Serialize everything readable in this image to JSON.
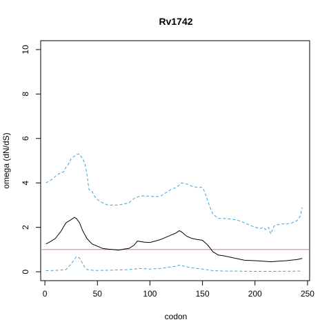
{
  "chart_data": {
    "type": "line",
    "title": "Rv1742",
    "xlabel": "codon",
    "ylabel": "omega (dN/dS)",
    "xlim": [
      -4,
      252
    ],
    "ylim": [
      -0.4,
      10.4
    ],
    "x_ticks": [
      0,
      50,
      100,
      150,
      200,
      250
    ],
    "y_ticks": [
      0,
      2,
      4,
      6,
      8,
      10
    ],
    "grid": false,
    "legend": "none",
    "reference_line": {
      "y": 1,
      "color": "#cc79a7"
    },
    "series": [
      {
        "style": "solid",
        "color": "#000000",
        "x": [
          1,
          5,
          10,
          15,
          20,
          25,
          28,
          30,
          33,
          36,
          40,
          45,
          50,
          55,
          60,
          65,
          70,
          75,
          80,
          85,
          88,
          95,
          100,
          105,
          110,
          115,
          120,
          125,
          128,
          130,
          135,
          140,
          145,
          150,
          155,
          160,
          165,
          170,
          180,
          190,
          200,
          210,
          215,
          220,
          230,
          240,
          245
        ],
        "y": [
          1.25,
          1.35,
          1.5,
          1.8,
          2.2,
          2.35,
          2.45,
          2.4,
          2.2,
          1.85,
          1.5,
          1.25,
          1.15,
          1.05,
          1.02,
          1.0,
          0.97,
          1.02,
          1.05,
          1.2,
          1.38,
          1.33,
          1.32,
          1.38,
          1.45,
          1.55,
          1.65,
          1.75,
          1.85,
          1.8,
          1.6,
          1.5,
          1.45,
          1.42,
          1.2,
          0.9,
          0.75,
          0.72,
          0.62,
          0.52,
          0.5,
          0.47,
          0.45,
          0.47,
          0.5,
          0.55,
          0.6
        ]
      },
      {
        "style": "dashed",
        "color": "#3aa0d9",
        "x": [
          1,
          5,
          8,
          10,
          13,
          15,
          18,
          20,
          22,
          25,
          28,
          30,
          33,
          35,
          38,
          40,
          42,
          45,
          48,
          50,
          55,
          60,
          65,
          70,
          75,
          80,
          85,
          90,
          95,
          100,
          105,
          110,
          115,
          120,
          125,
          128,
          130,
          135,
          140,
          145,
          150,
          152,
          155,
          158,
          160,
          165,
          170,
          175,
          180,
          185,
          190,
          195,
          200,
          205,
          208,
          210,
          213,
          215,
          218,
          220,
          225,
          230,
          235,
          240,
          243,
          245
        ],
        "y": [
          4.0,
          4.1,
          4.2,
          4.3,
          4.4,
          4.45,
          4.5,
          4.7,
          4.8,
          5.1,
          5.2,
          5.28,
          5.3,
          5.15,
          4.9,
          4.4,
          3.7,
          3.6,
          3.35,
          3.25,
          3.1,
          3.0,
          3.0,
          3.0,
          3.05,
          3.1,
          3.3,
          3.4,
          3.42,
          3.4,
          3.38,
          3.4,
          3.55,
          3.7,
          3.8,
          3.9,
          4.0,
          3.95,
          3.85,
          3.8,
          3.8,
          3.6,
          3.2,
          2.8,
          2.6,
          2.4,
          2.4,
          2.38,
          2.35,
          2.3,
          2.2,
          2.1,
          2.0,
          1.95,
          2.0,
          1.9,
          2.0,
          1.7,
          2.05,
          2.1,
          2.15,
          2.15,
          2.2,
          2.3,
          2.5,
          2.9
        ]
      },
      {
        "style": "dashed",
        "color": "#3aa0d9",
        "x": [
          1,
          10,
          20,
          25,
          28,
          30,
          33,
          35,
          38,
          40,
          45,
          50,
          60,
          70,
          80,
          90,
          100,
          110,
          120,
          125,
          128,
          130,
          135,
          140,
          150,
          160,
          170,
          180,
          200,
          220,
          245
        ],
        "y": [
          0.05,
          0.06,
          0.1,
          0.35,
          0.55,
          0.68,
          0.62,
          0.45,
          0.2,
          0.1,
          0.07,
          0.06,
          0.07,
          0.08,
          0.1,
          0.15,
          0.12,
          0.15,
          0.22,
          0.25,
          0.3,
          0.28,
          0.22,
          0.18,
          0.12,
          0.05,
          0.03,
          0.03,
          0.02,
          0.02,
          0.03
        ]
      }
    ]
  }
}
